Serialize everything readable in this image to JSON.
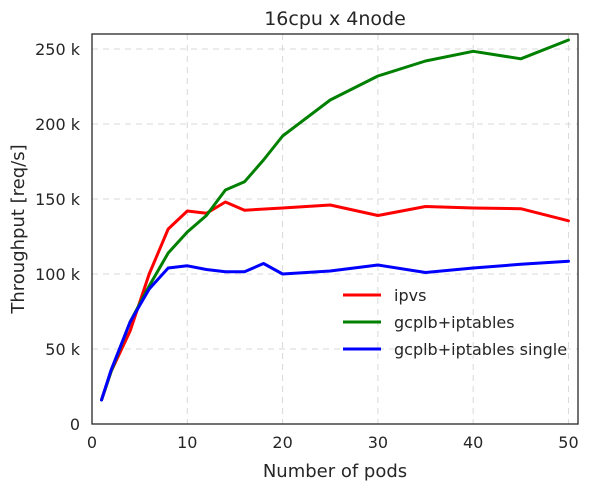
{
  "chart_data": {
    "type": "line",
    "title": "16cpu x 4node",
    "xlabel": "Number of pods",
    "ylabel": "Throughput [req/s]",
    "xlim": [
      0,
      51
    ],
    "ylim": [
      0,
      260000
    ],
    "x_ticks": [
      0,
      10,
      20,
      30,
      40,
      50
    ],
    "x_tick_labels": [
      "0",
      "10",
      "20",
      "30",
      "40",
      "50"
    ],
    "y_ticks": [
      0,
      50000,
      100000,
      150000,
      200000,
      250000
    ],
    "y_tick_labels": [
      "0",
      "50 k",
      "100 k",
      "150 k",
      "200 k",
      "250 k"
    ],
    "grid": true,
    "legend_position": "lower-right",
    "series": [
      {
        "name": "ipvs",
        "color": "#ff0000",
        "x": [
          1,
          2,
          4,
          6,
          8,
          10,
          12,
          14,
          16,
          20,
          25,
          30,
          35,
          40,
          45,
          50
        ],
        "y": [
          16000,
          35000,
          62000,
          100000,
          130000,
          142000,
          140500,
          148000,
          142500,
          144000,
          146000,
          139000,
          145000,
          144000,
          143500,
          135500
        ]
      },
      {
        "name": "gcplb+iptables",
        "color": "#008000",
        "x": [
          1,
          2,
          4,
          6,
          8,
          10,
          12,
          14,
          16,
          18,
          20,
          25,
          30,
          35,
          40,
          45,
          50
        ],
        "y": [
          16000,
          35000,
          68000,
          92000,
          114000,
          128000,
          139000,
          156000,
          161500,
          176000,
          192000,
          216000,
          232000,
          242000,
          248500,
          243500,
          256000
        ]
      },
      {
        "name": "gcplb+iptables single",
        "color": "#0000ff",
        "x": [
          1,
          2,
          4,
          6,
          8,
          10,
          12,
          14,
          16,
          18,
          20,
          25,
          30,
          35,
          40,
          45,
          50
        ],
        "y": [
          16000,
          36000,
          68000,
          90000,
          104000,
          105500,
          103000,
          101500,
          101500,
          107000,
          100000,
          102000,
          106000,
          101000,
          104000,
          106500,
          108500
        ]
      }
    ]
  }
}
